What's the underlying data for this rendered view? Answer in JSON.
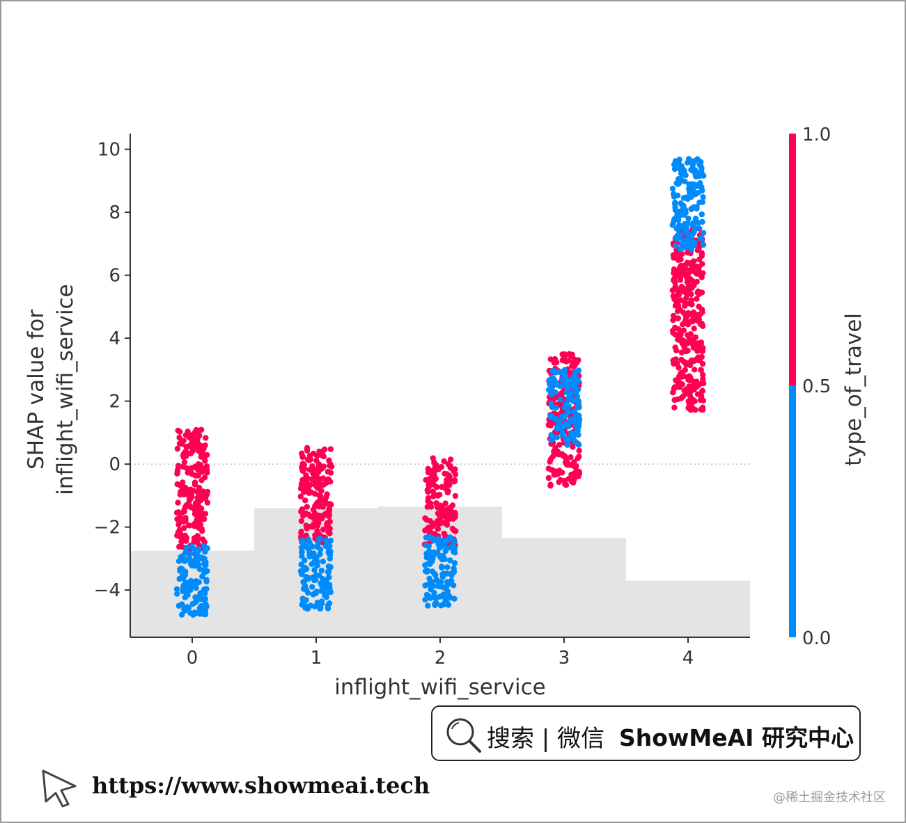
{
  "chart_data": {
    "type": "scatter",
    "subtype": "shap-dependence",
    "xlabel": "inflight_wifi_service",
    "ylabel_lines": [
      "SHAP value for",
      "inflight_wifi_service"
    ],
    "x_ticks": [
      "0",
      "1",
      "2",
      "3",
      "4"
    ],
    "y_ticks": [
      "10",
      "8",
      "6",
      "4",
      "2",
      "0",
      "−2",
      "−4"
    ],
    "xlim": [
      -0.5,
      4.5
    ],
    "ylim": [
      -5.5,
      10.5
    ],
    "zero_reference_line": true,
    "color_by": "type_of_travel",
    "colorbar": {
      "label": "type_of_travel",
      "ticks": [
        "1.0",
        "0.5",
        "0.0"
      ],
      "low_color": "#008bfb",
      "high_color": "#ff0052"
    },
    "series": [
      {
        "x": 0,
        "type_of_travel": 1,
        "shap_min": -2.8,
        "shap_max": 1.1
      },
      {
        "x": 0,
        "type_of_travel": 0,
        "shap_min": -4.8,
        "shap_max": -2.6
      },
      {
        "x": 1,
        "type_of_travel": 1,
        "shap_min": -2.5,
        "shap_max": 0.6
      },
      {
        "x": 1,
        "type_of_travel": 0,
        "shap_min": -4.6,
        "shap_max": -2.3
      },
      {
        "x": 2,
        "type_of_travel": 1,
        "shap_min": -2.6,
        "shap_max": 0.2
      },
      {
        "x": 2,
        "type_of_travel": 0,
        "shap_min": -4.5,
        "shap_max": -2.3
      },
      {
        "x": 3,
        "type_of_travel": 1,
        "shap_min": -0.7,
        "shap_max": 3.5
      },
      {
        "x": 3,
        "type_of_travel": 0,
        "shap_min": 0.6,
        "shap_max": 3.0
      },
      {
        "x": 4,
        "type_of_travel": 1,
        "shap_min": 1.7,
        "shap_max": 7.5
      },
      {
        "x": 4,
        "type_of_travel": 0,
        "shap_min": 6.8,
        "shap_max": 9.7
      }
    ],
    "histogram_background": {
      "categories": [
        "0",
        "1",
        "2",
        "3",
        "4"
      ],
      "top_values": [
        -2.75,
        -1.4,
        -1.35,
        -2.35,
        -3.7
      ]
    }
  },
  "footer": {
    "search_text": "搜索 | 微信",
    "brand_text": "ShowMeAI 研究中心",
    "site_url": "https://www.showmeai.tech",
    "watermark": "@稀土掘金技术社区"
  },
  "icons": {
    "search": "magnifier-icon",
    "cursor": "cursor-pointer-icon"
  }
}
